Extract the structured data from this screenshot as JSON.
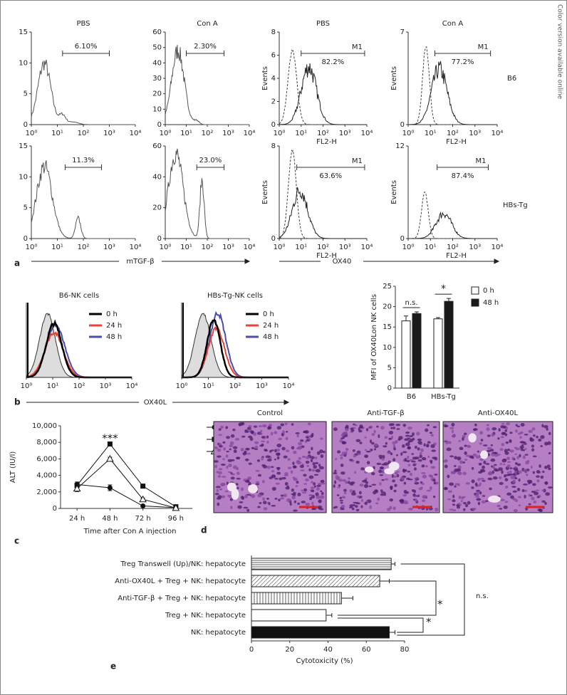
{
  "side_note": "Color version available online",
  "panel_labels": [
    "a",
    "b",
    "c",
    "d",
    "e"
  ],
  "panel_a": {
    "xlim": [
      1,
      10000
    ],
    "log": true,
    "xticks": [
      {
        "value": 1,
        "label": "10⁰"
      },
      {
        "value": 10,
        "label": "10¹"
      },
      {
        "value": 100,
        "label": "10²"
      },
      {
        "value": 1000,
        "label": "10³"
      },
      {
        "value": 10000,
        "label": "10⁴"
      }
    ],
    "histograms": [
      {
        "title": "PBS",
        "ylim": [
          0,
          15
        ],
        "yticks": [
          0,
          5,
          10,
          15
        ],
        "gate_label": "6.10%"
      },
      {
        "title": "Con A",
        "ylim": [
          0,
          60
        ],
        "yticks": [
          0,
          10,
          20,
          30,
          40,
          50,
          60
        ],
        "gate_label": "2.30%"
      },
      {
        "title": "PBS",
        "ylim": [
          0,
          8
        ],
        "yticks": [
          0,
          2,
          4,
          6,
          8
        ],
        "gate_name": "M1",
        "gate_label": "82.2%",
        "ylabel": "Events",
        "xlabel": "FL2-H"
      },
      {
        "title": "Con A",
        "ylim": [
          0,
          7
        ],
        "yticks": [
          0,
          7
        ],
        "gate_name": "M1",
        "gate_label": "77.2%",
        "ylabel": "Events",
        "xlabel": "FL2-H"
      },
      {
        "ylim": [
          0,
          15
        ],
        "yticks": [
          0,
          5,
          10,
          15
        ],
        "gate_label": "11.3%"
      },
      {
        "ylim": [
          0,
          60
        ],
        "yticks": [
          0,
          20,
          40,
          60
        ],
        "gate_label": "23.0%"
      },
      {
        "ylim": [
          0,
          8
        ],
        "yticks": [
          0,
          8
        ],
        "gate_name": "M1",
        "gate_label": "63.6%",
        "ylabel": "Events",
        "xlabel": "FL2-H"
      },
      {
        "ylim": [
          0,
          12
        ],
        "yticks": [
          0,
          12
        ],
        "gate_name": "M1",
        "gate_label": "87.4%",
        "ylabel": "Events",
        "xlabel": "FL2-H"
      }
    ],
    "row_labels": [
      "B6",
      "HBs-Tg"
    ],
    "axis_labels": [
      "mTGF-β",
      "OX40"
    ]
  },
  "panel_b": {
    "histograms": [
      {
        "title": "B6-NK cells"
      },
      {
        "title": "HBs-Tg-NK cells"
      }
    ],
    "xlim": [
      1,
      10000
    ],
    "log": true,
    "xticks": [
      {
        "value": 1,
        "label": "10⁰"
      },
      {
        "value": 10,
        "label": "10¹"
      },
      {
        "value": 100,
        "label": "10²"
      },
      {
        "value": 1000,
        "label": "10³"
      },
      {
        "value": 10000,
        "label": "10⁴"
      }
    ],
    "legend": [
      {
        "name": "0 h",
        "color": "#000000"
      },
      {
        "name": "24 h",
        "color": "#e8403a"
      },
      {
        "name": "48 h",
        "color": "#4a4fa8"
      }
    ],
    "xlabel": "OX40L"
  },
  "panel_d": {
    "titles": [
      "Control",
      "Anti-TGF-β",
      "Anti-OX40L"
    ]
  },
  "chart_data": [
    {
      "type": "bar",
      "categories": [
        "B6",
        "HBs-Tg"
      ],
      "ylabel": "MFI of OX40Lon NK cells",
      "ylim": [
        0,
        25
      ],
      "yticks": [
        0,
        5,
        10,
        15,
        20,
        25
      ],
      "series": [
        {
          "name": "0 h",
          "color": "#ffffff",
          "values": [
            16.5,
            17
          ],
          "errors": [
            1.2,
            0.3
          ]
        },
        {
          "name": "48 h",
          "color": "#1a1a1a",
          "values": [
            18.3,
            21.3
          ],
          "errors": [
            0.4,
            0.7
          ]
        }
      ],
      "annotations": [
        "n.s.",
        "*"
      ]
    },
    {
      "type": "line",
      "categories": [
        "24 h",
        "48 h",
        "72 h",
        "96 h"
      ],
      "xlabel": "Time after Con A injection",
      "ylabel": "ALT (IU/l)",
      "ylim": [
        0,
        10000
      ],
      "yticks": [
        0,
        {
          "value": 2000,
          "label": "2,000"
        },
        {
          "value": 4000,
          "label": "4,000"
        },
        {
          "value": 6000,
          "label": "6,000"
        },
        {
          "value": 8000,
          "label": "8,000"
        },
        {
          "value": 10000,
          "label": "10,000"
        }
      ],
      "series": [
        {
          "name": "Control",
          "color": "#111111",
          "marker": "circle",
          "values": [
            2900,
            2500,
            300,
            100
          ],
          "errors": [
            300,
            350,
            100,
            50
          ]
        },
        {
          "name": "Anti-TGF-β",
          "color": "#111111",
          "marker": "square",
          "values": [
            2800,
            7800,
            2700,
            200
          ],
          "errors": [
            250,
            150,
            150,
            50
          ]
        },
        {
          "name": "Anti-OX40L",
          "color": "#111111",
          "marker": "triangle",
          "values": [
            2400,
            6000,
            1100,
            50
          ],
          "errors": [
            350,
            200,
            150,
            30
          ]
        }
      ],
      "annotations": [
        "***"
      ]
    },
    {
      "type": "hbar",
      "categories": [
        "Treg Transwell (Up)/NK: hepatocyte",
        "Anti-OX40L + Treg + NK: hepatocyte",
        "Anti-TGF-β + Treg + NK: hepatocyte",
        "Treg + NK: hepatocyte",
        "NK: hepatocyte"
      ],
      "values": [
        73,
        67,
        47,
        39,
        72
      ],
      "errors": [
        2,
        5,
        6,
        3,
        3
      ],
      "patterns": [
        "horizontal",
        "diagonal",
        "vertical",
        "none",
        "solid"
      ],
      "xlim": [
        0,
        80
      ],
      "xticks": [
        0,
        20,
        40,
        60,
        80
      ],
      "xlabel": "Cytotoxicity (%)",
      "annotations": [
        "*",
        "*",
        "n.s."
      ]
    }
  ]
}
